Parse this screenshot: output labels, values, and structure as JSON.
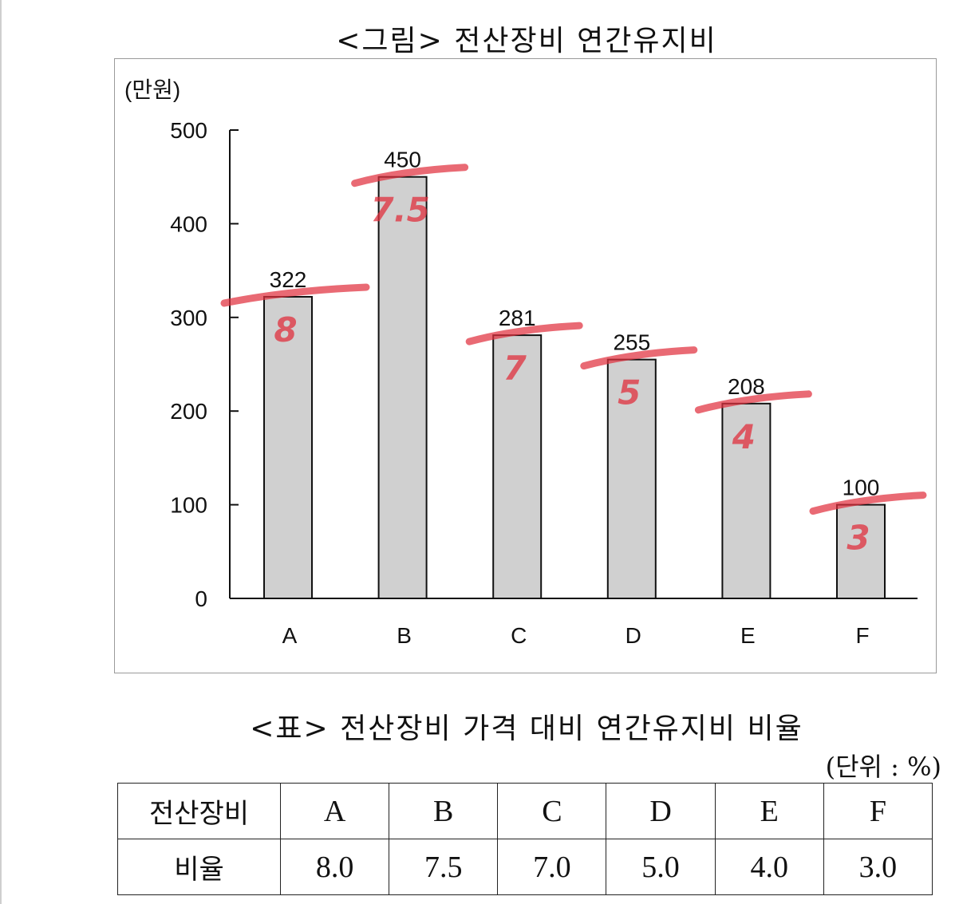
{
  "figure": {
    "title": "<그림> 전산장비 연간유지비",
    "unit_label": "(만원)"
  },
  "chart_data": {
    "type": "bar",
    "title": "<그림> 전산장비 연간유지비",
    "ylabel": "(만원)",
    "xlabel": "",
    "categories": [
      "A",
      "B",
      "C",
      "D",
      "E",
      "F"
    ],
    "values": [
      322,
      450,
      281,
      255,
      208,
      100
    ],
    "ylim": [
      0,
      500
    ],
    "yticks": [
      0,
      100,
      200,
      300,
      400,
      500
    ],
    "grid": false,
    "bar_color": "#d0d0d0",
    "annotations": {
      "description": "handwritten red marks: underline at each bar top with the ratio written below",
      "color": "#e0303e",
      "labels": [
        "8",
        "7.5",
        "7",
        "5",
        "4",
        "3"
      ]
    }
  },
  "table": {
    "title": "<표> 전산장비 가격 대비 연간유지비 비율",
    "unit": "(단위 : %)",
    "header_label": "전산장비",
    "row_label": "비율",
    "columns": [
      "A",
      "B",
      "C",
      "D",
      "E",
      "F"
    ],
    "values": [
      "8.0",
      "7.5",
      "7.0",
      "5.0",
      "4.0",
      "3.0"
    ]
  }
}
